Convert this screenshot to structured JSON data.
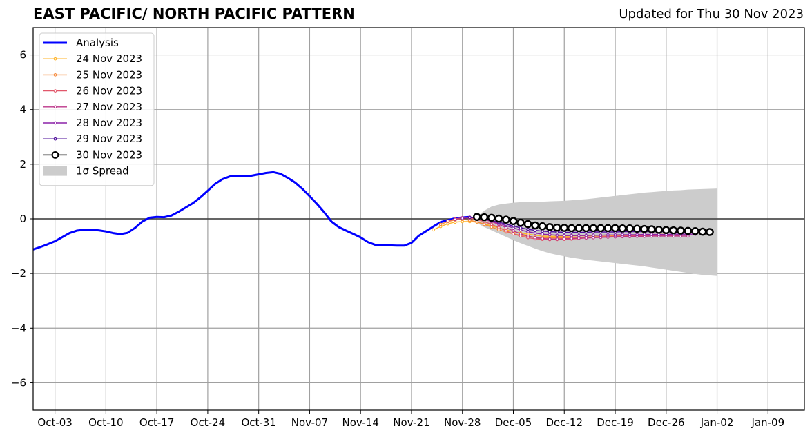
{
  "chart_data": {
    "type": "line",
    "title": "EAST PACIFIC/ NORTH PACIFIC PATTERN",
    "subtitle": "Updated for Thu 30 Nov 2023",
    "xlabel": "",
    "ylabel": "",
    "x_axis": {
      "type": "date",
      "range": [
        "2023-09-30",
        "2024-01-14"
      ],
      "tick_dates": [
        "2023-10-03",
        "2023-10-10",
        "2023-10-17",
        "2023-10-24",
        "2023-10-31",
        "2023-11-07",
        "2023-11-14",
        "2023-11-21",
        "2023-11-28",
        "2023-12-05",
        "2023-12-12",
        "2023-12-19",
        "2023-12-26",
        "2024-01-02",
        "2024-01-09"
      ],
      "tick_labels": [
        "Oct-03",
        "Oct-10",
        "Oct-17",
        "Oct-24",
        "Oct-31",
        "Nov-07",
        "Nov-14",
        "Nov-21",
        "Nov-28",
        "Dec-05",
        "Dec-12",
        "Dec-19",
        "Dec-26",
        "Jan-02",
        "Jan-09"
      ]
    },
    "y_axis": {
      "range": [
        -7,
        7
      ],
      "ticks": [
        -6,
        -4,
        -2,
        0,
        2,
        4,
        6
      ],
      "tick_labels": [
        "−6",
        "−4",
        "−2",
        "0",
        "2",
        "4",
        "6"
      ]
    },
    "grid": true,
    "zero_line": true,
    "legend_position": "top-left",
    "analysis": {
      "name": "Analysis",
      "color": "#0000ff",
      "start_date": "2023-09-30",
      "values": [
        -1.12,
        -1.03,
        -0.93,
        -0.82,
        -0.67,
        -0.52,
        -0.43,
        -0.4,
        -0.4,
        -0.42,
        -0.46,
        -0.52,
        -0.56,
        -0.51,
        -0.33,
        -0.1,
        0.04,
        0.07,
        0.06,
        0.12,
        0.26,
        0.42,
        0.58,
        0.79,
        1.03,
        1.28,
        1.45,
        1.55,
        1.58,
        1.57,
        1.58,
        1.63,
        1.68,
        1.71,
        1.65,
        1.5,
        1.33,
        1.1,
        0.83,
        0.55,
        0.24,
        -0.1,
        -0.3,
        -0.43,
        -0.55,
        -0.68,
        -0.85,
        -0.95,
        -0.96,
        -0.97,
        -0.98,
        -0.98,
        -0.88,
        -0.62,
        -0.45,
        -0.28,
        -0.12,
        -0.05,
        0.02,
        0.05,
        0.07
      ]
    },
    "forecasts": [
      {
        "name": "24 Nov 2023",
        "color": "#ffb327",
        "start_date": "2023-11-24",
        "values": [
          -0.4,
          -0.28,
          -0.18,
          -0.12,
          -0.1,
          -0.1,
          -0.12,
          -0.18,
          -0.26,
          -0.33,
          -0.4,
          -0.47,
          -0.52,
          -0.56,
          -0.6,
          -0.63,
          -0.64,
          -0.64,
          -0.64,
          -0.63,
          -0.62,
          -0.62,
          -0.61,
          -0.6,
          -0.6,
          -0.6,
          -0.59,
          -0.59,
          -0.58,
          -0.58,
          -0.57,
          -0.57,
          -0.56
        ]
      },
      {
        "name": "25 Nov 2023",
        "color": "#f58a3c",
        "start_date": "2023-11-25",
        "values": [
          -0.2,
          -0.1,
          -0.04,
          -0.02,
          -0.05,
          -0.11,
          -0.2,
          -0.3,
          -0.4,
          -0.48,
          -0.55,
          -0.6,
          -0.64,
          -0.67,
          -0.69,
          -0.7,
          -0.7,
          -0.7,
          -0.69,
          -0.68,
          -0.67,
          -0.66,
          -0.65,
          -0.64,
          -0.63,
          -0.62,
          -0.62,
          -0.61,
          -0.6,
          -0.6,
          -0.59,
          -0.59,
          -0.58
        ]
      },
      {
        "name": "26 Nov 2023",
        "color": "#e1576a",
        "start_date": "2023-11-26",
        "values": [
          -0.08,
          0.0,
          0.04,
          0.03,
          -0.02,
          -0.1,
          -0.2,
          -0.32,
          -0.44,
          -0.55,
          -0.63,
          -0.69,
          -0.73,
          -0.75,
          -0.76,
          -0.76,
          -0.75,
          -0.74,
          -0.72,
          -0.7,
          -0.68,
          -0.66,
          -0.65,
          -0.64,
          -0.63,
          -0.62,
          -0.62,
          -0.61,
          -0.61,
          -0.6,
          -0.6,
          -0.6,
          -0.6
        ]
      },
      {
        "name": "27 Nov 2023",
        "color": "#bb3488",
        "start_date": "2023-11-27",
        "values": [
          -0.02,
          0.04,
          0.06,
          0.04,
          -0.02,
          -0.1,
          -0.2,
          -0.32,
          -0.44,
          -0.55,
          -0.63,
          -0.69,
          -0.72,
          -0.74,
          -0.74,
          -0.73,
          -0.72,
          -0.71,
          -0.7,
          -0.69,
          -0.68,
          -0.67,
          -0.66,
          -0.65,
          -0.65,
          -0.64,
          -0.64,
          -0.63,
          -0.63,
          -0.63,
          -0.63,
          -0.63,
          -0.63
        ]
      },
      {
        "name": "28 Nov 2023",
        "color": "#8c22a8",
        "start_date": "2023-11-28",
        "values": [
          0.02,
          0.05,
          0.04,
          -0.01,
          -0.08,
          -0.16,
          -0.25,
          -0.33,
          -0.41,
          -0.47,
          -0.52,
          -0.56,
          -0.58,
          -0.6,
          -0.61,
          -0.61,
          -0.61,
          -0.61,
          -0.6,
          -0.6,
          -0.59,
          -0.59,
          -0.58,
          -0.58,
          -0.58,
          -0.57,
          -0.57,
          -0.57,
          -0.57,
          -0.56,
          -0.56,
          -0.56,
          -0.56
        ]
      },
      {
        "name": "29 Nov 2023",
        "color": "#4c0c9a",
        "start_date": "2023-11-29",
        "values": [
          0.05,
          0.04,
          0.0,
          -0.06,
          -0.12,
          -0.19,
          -0.26,
          -0.33,
          -0.38,
          -0.42,
          -0.45,
          -0.47,
          -0.48,
          -0.49,
          -0.49,
          -0.49,
          -0.49,
          -0.48,
          -0.48,
          -0.48,
          -0.48,
          -0.47,
          -0.47,
          -0.47,
          -0.47,
          -0.47,
          -0.47,
          -0.47,
          -0.47,
          -0.47,
          -0.47,
          -0.47,
          -0.47
        ]
      },
      {
        "name": "30 Nov 2023",
        "color": "#000000",
        "marker": "open-circle",
        "start_date": "2023-11-30",
        "values": [
          0.07,
          0.06,
          0.04,
          0.01,
          -0.03,
          -0.08,
          -0.14,
          -0.19,
          -0.24,
          -0.27,
          -0.3,
          -0.32,
          -0.33,
          -0.34,
          -0.34,
          -0.34,
          -0.34,
          -0.34,
          -0.34,
          -0.34,
          -0.35,
          -0.35,
          -0.36,
          -0.37,
          -0.38,
          -0.4,
          -0.41,
          -0.42,
          -0.43,
          -0.44,
          -0.45,
          -0.47,
          -0.48
        ]
      }
    ],
    "spread": {
      "name": "1σ Spread",
      "color": "#cccccc",
      "start_date": "2023-11-30",
      "upper": [
        0.07,
        0.3,
        0.45,
        0.52,
        0.56,
        0.59,
        0.61,
        0.62,
        0.63,
        0.63,
        0.64,
        0.65,
        0.66,
        0.68,
        0.7,
        0.72,
        0.75,
        0.78,
        0.81,
        0.84,
        0.87,
        0.9,
        0.93,
        0.96,
        0.98,
        1.0,
        1.02,
        1.04,
        1.05,
        1.07,
        1.08,
        1.09,
        1.1,
        1.11
      ],
      "lower": [
        -0.15,
        -0.3,
        -0.42,
        -0.54,
        -0.66,
        -0.78,
        -0.89,
        -0.99,
        -1.09,
        -1.18,
        -1.26,
        -1.32,
        -1.37,
        -1.42,
        -1.46,
        -1.5,
        -1.53,
        -1.56,
        -1.59,
        -1.62,
        -1.65,
        -1.68,
        -1.71,
        -1.74,
        -1.78,
        -1.82,
        -1.86,
        -1.9,
        -1.94,
        -1.98,
        -2.02,
        -2.05,
        -2.07,
        -2.09
      ]
    },
    "legend": [
      {
        "label": "Analysis",
        "color": "#0000ff",
        "kind": "thick-line"
      },
      {
        "label": "24 Nov 2023",
        "color": "#ffb327",
        "kind": "line-dot"
      },
      {
        "label": "25 Nov 2023",
        "color": "#f58a3c",
        "kind": "line-dot"
      },
      {
        "label": "26 Nov 2023",
        "color": "#e1576a",
        "kind": "line-dot"
      },
      {
        "label": "27 Nov 2023",
        "color": "#bb3488",
        "kind": "line-dot"
      },
      {
        "label": "28 Nov 2023",
        "color": "#8c22a8",
        "kind": "line-dot"
      },
      {
        "label": "29 Nov 2023",
        "color": "#4c0c9a",
        "kind": "line-dot"
      },
      {
        "label": "30 Nov 2023",
        "color": "#000000",
        "kind": "line-circle"
      },
      {
        "label": "1σ Spread",
        "color": "#cccccc",
        "kind": "patch"
      }
    ]
  }
}
